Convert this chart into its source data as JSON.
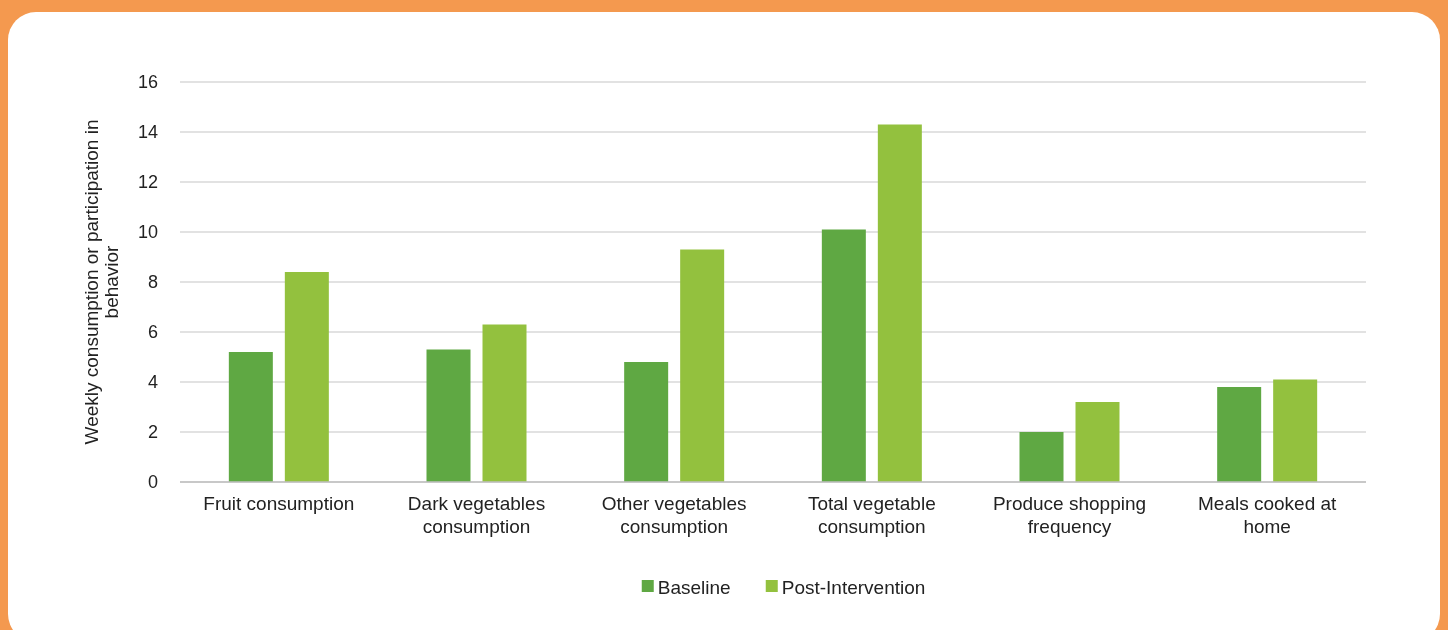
{
  "chart_data": {
    "type": "bar",
    "ylabel": "Weekly consumption or participation in behavior",
    "categories": [
      "Fruit consumption",
      "Dark vegetables consumption",
      "Other vegetables consumption",
      "Total vegetable consumption",
      "Produce shopping frequency",
      "Meals cooked at home"
    ],
    "series": [
      {
        "name": "Baseline",
        "color": "#5fa843",
        "values": [
          5.2,
          5.3,
          4.8,
          10.1,
          2.0,
          3.8
        ]
      },
      {
        "name": "Post-Intervention",
        "color": "#93c13e",
        "values": [
          8.4,
          6.3,
          9.3,
          14.3,
          3.2,
          4.1
        ]
      }
    ],
    "ylim": [
      0,
      16
    ],
    "yticks": [
      0,
      2,
      4,
      6,
      8,
      10,
      12,
      14,
      16
    ],
    "grid": "y",
    "legend": "bottom"
  }
}
